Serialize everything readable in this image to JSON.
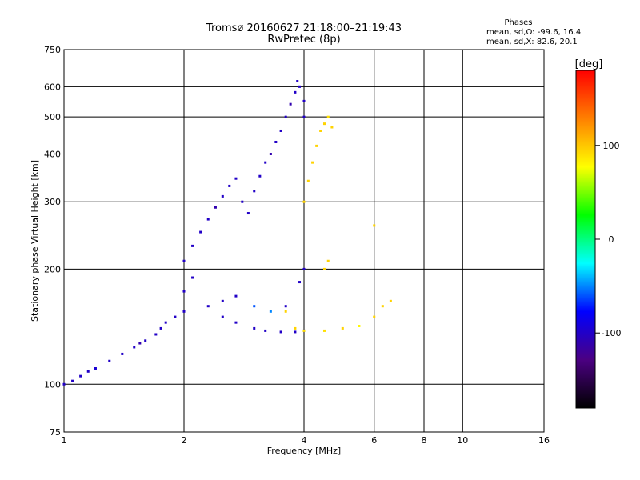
{
  "chart_data": {
    "type": "scatter",
    "title": "Tromsø 20160627 21:18:00–21:19:43",
    "subtitle": "RwPretec (8p)",
    "xlabel": "Frequency [MHz]",
    "ylabel": "Stationary phase Virtual Height [km]",
    "xscale": "log",
    "yscale": "log",
    "xlim": [
      1,
      16
    ],
    "ylim": [
      75,
      750
    ],
    "xticks": [
      1,
      2,
      4,
      6,
      8,
      10,
      16
    ],
    "yticks": [
      75,
      100,
      200,
      300,
      400,
      500,
      600,
      750
    ],
    "grid": true,
    "phase_stats": {
      "heading": "Phases",
      "o_line": "mean, sd,O: -99.6, 16.4",
      "x_line": "mean, sd,X:  82.6, 20.1"
    },
    "colorbar": {
      "label": "[deg]",
      "range": [
        -180,
        180
      ],
      "ticks": [
        100,
        0,
        -100
      ],
      "colormap": [
        "#000000",
        "#4b0082",
        "#0000ff",
        "#00ffff",
        "#00ff00",
        "#ffff00",
        "#ff8000",
        "#ff0000"
      ]
    },
    "series": [
      {
        "points": [
          [
            1.0,
            100,
            -100
          ],
          [
            1.05,
            102,
            -100
          ],
          [
            1.1,
            105,
            -100
          ],
          [
            1.15,
            108,
            -100
          ],
          [
            1.2,
            110,
            -95
          ],
          [
            1.3,
            115,
            -100
          ],
          [
            1.4,
            120,
            -100
          ],
          [
            1.5,
            125,
            -100
          ],
          [
            1.55,
            128,
            -110
          ],
          [
            1.6,
            130,
            -100
          ],
          [
            1.7,
            135,
            -100
          ],
          [
            1.75,
            140,
            -100
          ],
          [
            1.8,
            145,
            -100
          ],
          [
            1.9,
            150,
            -100
          ],
          [
            2.0,
            155,
            -100
          ],
          [
            2.0,
            175,
            -100
          ],
          [
            2.1,
            190,
            -100
          ],
          [
            2.0,
            210,
            -100
          ],
          [
            2.1,
            230,
            -100
          ],
          [
            2.2,
            250,
            -100
          ],
          [
            2.3,
            270,
            -100
          ],
          [
            2.4,
            290,
            -110
          ],
          [
            2.5,
            310,
            -100
          ],
          [
            2.6,
            330,
            -100
          ],
          [
            2.7,
            345,
            -100
          ],
          [
            2.8,
            300,
            -100
          ],
          [
            2.9,
            280,
            -100
          ],
          [
            3.0,
            320,
            -100
          ],
          [
            3.1,
            350,
            -100
          ],
          [
            3.2,
            380,
            -100
          ],
          [
            3.3,
            400,
            -110
          ],
          [
            3.4,
            430,
            -100
          ],
          [
            3.5,
            460,
            -100
          ],
          [
            3.6,
            500,
            -100
          ],
          [
            3.7,
            540,
            -110
          ],
          [
            3.8,
            580,
            -100
          ],
          [
            3.85,
            620,
            -100
          ],
          [
            3.9,
            600,
            -100
          ],
          [
            4.0,
            550,
            -100
          ],
          [
            4.0,
            500,
            -100
          ],
          [
            2.5,
            150,
            -100
          ],
          [
            2.7,
            145,
            -100
          ],
          [
            3.0,
            140,
            -100
          ],
          [
            3.2,
            138,
            -100
          ],
          [
            3.5,
            137,
            -100
          ],
          [
            3.8,
            137,
            -100
          ],
          [
            4.0,
            138,
            -100
          ],
          [
            2.3,
            160,
            -100
          ],
          [
            2.5,
            165,
            -100
          ],
          [
            2.7,
            170,
            -100
          ],
          [
            3.0,
            160,
            -60
          ],
          [
            3.3,
            155,
            -50
          ],
          [
            3.6,
            160,
            -100
          ],
          [
            3.9,
            185,
            -100
          ],
          [
            4.0,
            200,
            -100
          ]
        ]
      },
      {
        "points": [
          [
            4.0,
            300,
            95
          ],
          [
            4.1,
            340,
            95
          ],
          [
            4.2,
            380,
            95
          ],
          [
            4.3,
            420,
            95
          ],
          [
            4.4,
            460,
            95
          ],
          [
            4.5,
            480,
            95
          ],
          [
            4.6,
            500,
            90
          ],
          [
            4.7,
            470,
            95
          ],
          [
            3.6,
            155,
            95
          ],
          [
            3.8,
            140,
            95
          ],
          [
            4.0,
            138,
            90
          ],
          [
            4.5,
            138,
            90
          ],
          [
            5.0,
            140,
            95
          ],
          [
            5.5,
            142,
            80
          ],
          [
            6.0,
            150,
            95
          ],
          [
            6.3,
            160,
            95
          ],
          [
            6.6,
            165,
            95
          ],
          [
            4.5,
            200,
            95
          ],
          [
            4.6,
            210,
            95
          ],
          [
            6.0,
            260,
            95
          ]
        ]
      }
    ]
  }
}
